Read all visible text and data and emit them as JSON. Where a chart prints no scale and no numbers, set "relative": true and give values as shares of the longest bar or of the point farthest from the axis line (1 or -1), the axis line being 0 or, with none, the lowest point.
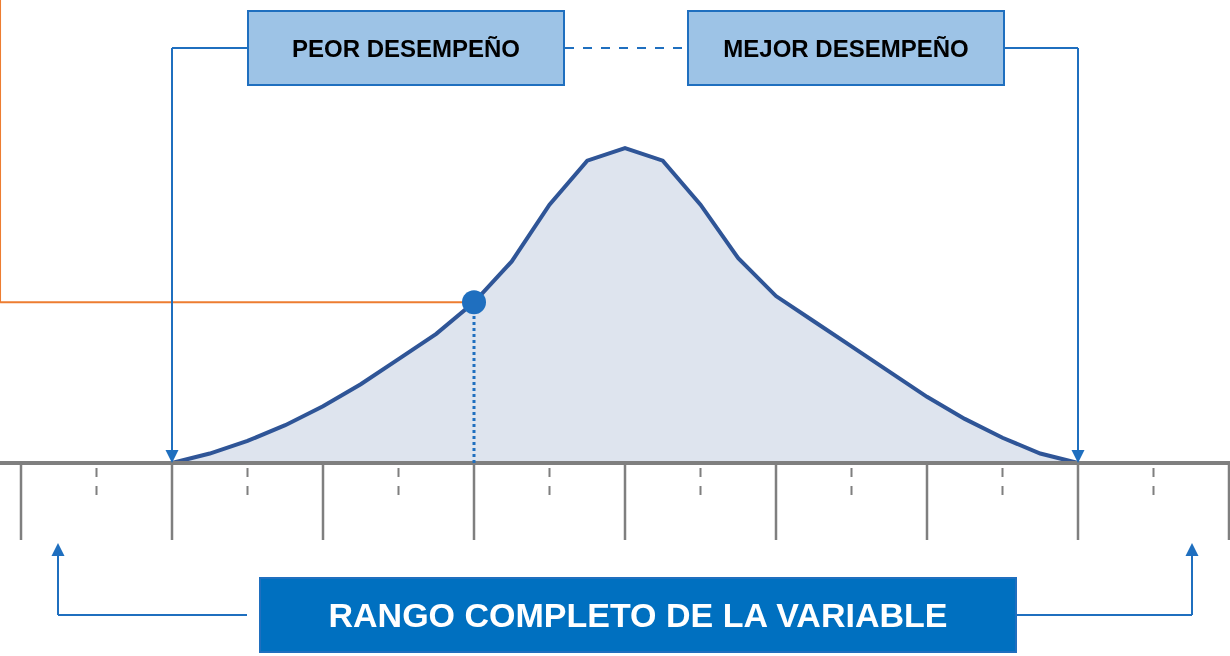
{
  "chart_data": {
    "type": "area",
    "relative": true,
    "categories": [
      null,
      null,
      null,
      null,
      null,
      null,
      null,
      null,
      null,
      null,
      null,
      null,
      null,
      null,
      null,
      null,
      null,
      null,
      null,
      null,
      null,
      null,
      null,
      null,
      null
    ],
    "series": [
      {
        "color": "#2f5597",
        "values": [
          0,
          0.03,
          0.07,
          0.12,
          0.18,
          0.25,
          0.33,
          0.41,
          0.51,
          0.64,
          0.82,
          0.96,
          1,
          0.96,
          0.82,
          0.65,
          0.53,
          0.45,
          0.37,
          0.29,
          0.21,
          0.14,
          0.08,
          0.03,
          0
        ]
      }
    ],
    "ref_lines": [
      {
        "axis": "y",
        "value": 0.51,
        "color": "#ed7d31"
      }
    ],
    "annotations": [
      "PEOR DESEMPEÑO",
      "MEJOR DESEMPEÑO",
      "RANGO COMPLETO DE LA VARIABLE"
    ]
  }
}
